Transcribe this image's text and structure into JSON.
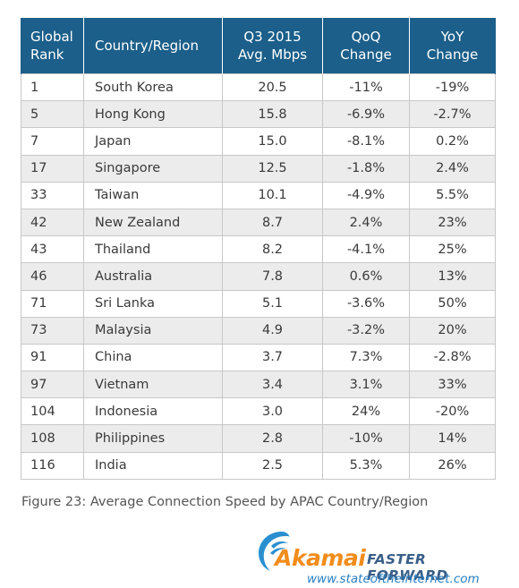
{
  "table": {
    "headers": {
      "rank": [
        "Global",
        "Rank"
      ],
      "country": [
        "Country/Region"
      ],
      "speed": [
        "Q3 2015",
        "Avg. Mbps"
      ],
      "qoq": [
        "QoQ",
        "Change"
      ],
      "yoy": [
        "YoY",
        "Change"
      ]
    },
    "rows": [
      {
        "rank": "1",
        "country": "South Korea",
        "speed": "20.5",
        "qoq": "-11%",
        "yoy": "-19%"
      },
      {
        "rank": "5",
        "country": "Hong Kong",
        "speed": "15.8",
        "qoq": "-6.9%",
        "yoy": "-2.7%"
      },
      {
        "rank": "7",
        "country": "Japan",
        "speed": "15.0",
        "qoq": "-8.1%",
        "yoy": "0.2%"
      },
      {
        "rank": "17",
        "country": "Singapore",
        "speed": "12.5",
        "qoq": "-1.8%",
        "yoy": "2.4%"
      },
      {
        "rank": "33",
        "country": "Taiwan",
        "speed": "10.1",
        "qoq": "-4.9%",
        "yoy": "5.5%"
      },
      {
        "rank": "42",
        "country": "New Zealand",
        "speed": "8.7",
        "qoq": "2.4%",
        "yoy": "23%"
      },
      {
        "rank": "43",
        "country": "Thailand",
        "speed": "8.2",
        "qoq": "-4.1%",
        "yoy": "25%"
      },
      {
        "rank": "46",
        "country": "Australia",
        "speed": "7.8",
        "qoq": "0.6%",
        "yoy": "13%"
      },
      {
        "rank": "71",
        "country": "Sri Lanka",
        "speed": "5.1",
        "qoq": "-3.6%",
        "yoy": "50%"
      },
      {
        "rank": "73",
        "country": "Malaysia",
        "speed": "4.9",
        "qoq": "-3.2%",
        "yoy": "20%"
      },
      {
        "rank": "91",
        "country": "China",
        "speed": "3.7",
        "qoq": "7.3%",
        "yoy": "-2.8%"
      },
      {
        "rank": "97",
        "country": "Vietnam",
        "speed": "3.4",
        "qoq": "3.1%",
        "yoy": "33%"
      },
      {
        "rank": "104",
        "country": "Indonesia",
        "speed": "3.0",
        "qoq": "24%",
        "yoy": "-20%"
      },
      {
        "rank": "108",
        "country": "Philippines",
        "speed": "2.8",
        "qoq": "-10%",
        "yoy": "14%"
      },
      {
        "rank": "116",
        "country": "India",
        "speed": "2.5",
        "qoq": "5.3%",
        "yoy": "26%"
      }
    ]
  },
  "caption": "Figure 23: Average Connection Speed by APAC Country/Region",
  "logo": {
    "brand": "Akamai",
    "tagline": "FASTER FORWARD",
    "url": "www.stateoftheinternet.com",
    "colors": {
      "brand": "#f28c1b",
      "tagline": "#3a5f88",
      "url": "#2a7fc2",
      "wave": "#2a8fd0"
    }
  },
  "colors": {
    "header_bg": "#1b5f8a",
    "header_text": "#ffffff",
    "row_alt_bg": "#ececec",
    "border": "#c8c8c8"
  }
}
